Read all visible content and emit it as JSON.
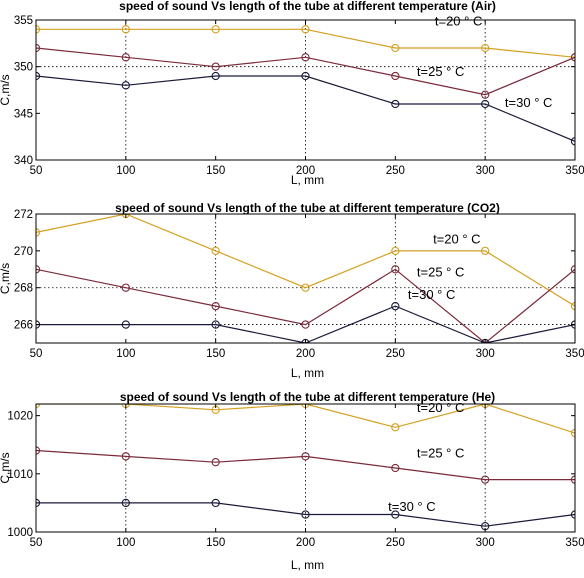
{
  "chart_data": [
    {
      "type": "line",
      "title": "speed of sound Vs  length of the tube at different temperature (Air)",
      "xlabel": "L, mm",
      "ylabel": "C,m/s",
      "x": [
        50,
        100,
        150,
        200,
        250,
        300,
        350
      ],
      "xlim": [
        50,
        350
      ],
      "ylim": [
        340,
        355
      ],
      "xticks": [
        50,
        100,
        150,
        200,
        250,
        300,
        350
      ],
      "yticks": [
        340,
        345,
        350,
        355
      ],
      "grid": "dotted lines at x=100, x=200, x=300 and y=350",
      "series": [
        {
          "color": "#d4a020",
          "values": [
            354,
            354,
            354,
            354,
            352,
            352,
            351
          ]
        },
        {
          "color": "#7a2a3a",
          "values": [
            352,
            351,
            350,
            351,
            349,
            347,
            351
          ]
        },
        {
          "color": "#1a1a3a",
          "values": [
            349,
            348,
            349,
            349,
            346,
            346,
            342
          ]
        }
      ],
      "annotations": [
        {
          "text": "t=20 ° C",
          "x": 272,
          "y": 354.4
        },
        {
          "text": "t=25 ° C",
          "x": 262,
          "y": 349.0
        },
        {
          "text": "t=30 ° C",
          "x": 311,
          "y": 345.7
        }
      ]
    },
    {
      "type": "line",
      "title": "speed of sound Vs  length of the tube at different temperature (CO2)",
      "xlabel": "L, mm",
      "ylabel": "C,m/s",
      "x": [
        50,
        100,
        150,
        200,
        250,
        300,
        350
      ],
      "xlim": [
        50,
        350
      ],
      "ylim": [
        265,
        272
      ],
      "xticks": [
        50,
        100,
        150,
        200,
        250,
        300,
        350
      ],
      "yticks": [
        266,
        268,
        270,
        272
      ],
      "grid": "dotted lines at x=150, x=250, y=268 and y=266",
      "series": [
        {
          "color": "#d4a020",
          "values": [
            271,
            272,
            270,
            268,
            270,
            270,
            267
          ]
        },
        {
          "color": "#7a2a3a",
          "values": [
            269,
            268,
            267,
            266,
            269,
            265,
            269
          ]
        },
        {
          "color": "#1a1a3a",
          "values": [
            266,
            266,
            266,
            265,
            267,
            265,
            266
          ]
        }
      ],
      "annotations": [
        {
          "text": "t=20 ° C",
          "x": 271,
          "y": 270.4
        },
        {
          "text": "t=25 ° C",
          "x": 262,
          "y": 268.6
        },
        {
          "text": "t=30 ° C",
          "x": 257,
          "y": 267.4
        }
      ]
    },
    {
      "type": "line",
      "title": "speed of sound Vs  length of the tube at different temperature (He)",
      "xlabel": "L, mm",
      "ylabel": "C,m/s",
      "x": [
        50,
        100,
        150,
        200,
        250,
        300,
        350
      ],
      "xlim": [
        50,
        350
      ],
      "ylim": [
        1000,
        1022
      ],
      "xticks": [
        50,
        100,
        150,
        200,
        250,
        300,
        350
      ],
      "yticks": [
        1000,
        1010,
        1020
      ],
      "grid": "dotted lines at x=100, x=200, x=300",
      "series": [
        {
          "color": "#d4a020",
          "values": [
            1022,
            1022,
            1021,
            1022,
            1018,
            1022,
            1017
          ]
        },
        {
          "color": "#7a2a3a",
          "values": [
            1014,
            1013,
            1012,
            1013,
            1011,
            1009,
            1009
          ]
        },
        {
          "color": "#1a1a3a",
          "values": [
            1005,
            1005,
            1005,
            1003,
            1003,
            1001,
            1003
          ]
        }
      ],
      "annotations": [
        {
          "text": "t=20 ° C",
          "x": 262,
          "y": 1020.6
        },
        {
          "text": "t=25 ° C",
          "x": 262,
          "y": 1012.8
        },
        {
          "text": "t=30 ° C",
          "x": 246,
          "y": 1003.6
        }
      ]
    }
  ]
}
